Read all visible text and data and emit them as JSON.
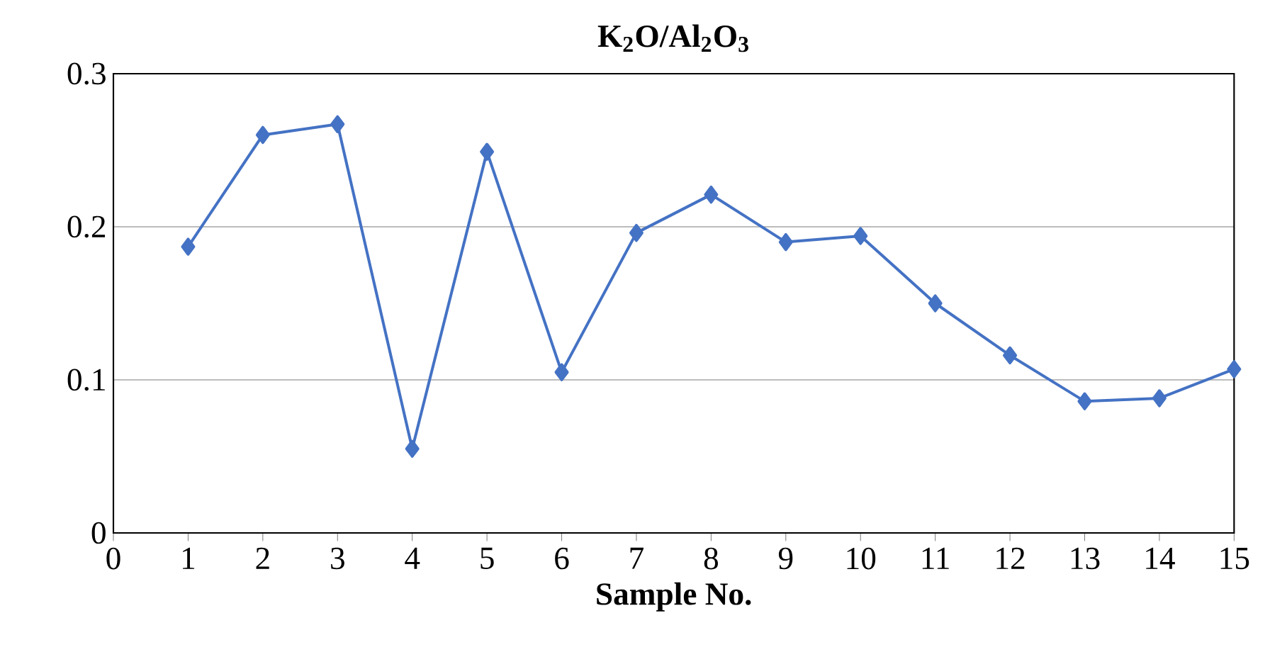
{
  "chart_data": {
    "type": "line",
    "title": "K$_{2}$O/Al$_{2}$O$_{3}$",
    "xlabel": "Sample No.",
    "x": [
      1,
      2,
      3,
      4,
      5,
      6,
      7,
      8,
      9,
      10,
      11,
      12,
      13,
      14,
      15
    ],
    "values": [
      0.187,
      0.26,
      0.267,
      0.055,
      0.249,
      0.105,
      0.196,
      0.221,
      0.19,
      0.194,
      0.15,
      0.116,
      0.086,
      0.088,
      0.107
    ],
    "color": "#4472c4",
    "marker": "diamond",
    "line_style": "solid",
    "xlim": [
      0,
      15
    ],
    "xticks": [
      0,
      1,
      2,
      3,
      4,
      5,
      6,
      7,
      8,
      9,
      10,
      11,
      12,
      13,
      14,
      15
    ],
    "ylim": [
      0,
      0.3
    ],
    "yticks": [
      0,
      0.1,
      0.2,
      0.3
    ],
    "grid": "y"
  }
}
